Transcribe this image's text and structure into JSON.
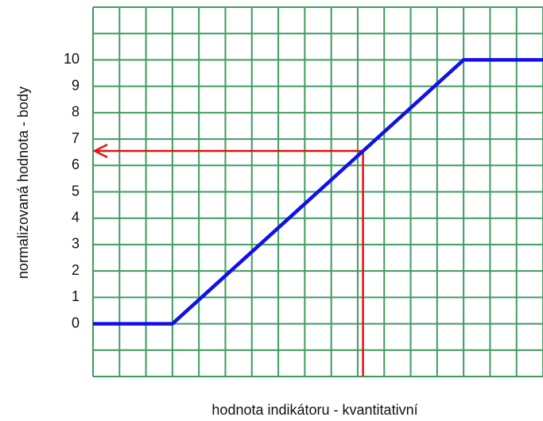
{
  "chart_data": {
    "type": "line",
    "xlabel": "hodnota indikátoru - kvantitativní",
    "ylabel": "normalizovaná hodnota - body",
    "x": [
      0,
      3,
      14,
      17
    ],
    "series": [
      {
        "color": "#1010e8",
        "values": [
          0,
          0,
          10,
          10
        ]
      }
    ],
    "xlim": [
      0,
      17
    ],
    "ylim": [
      -2,
      12
    ],
    "yticks": [
      0,
      1,
      2,
      3,
      4,
      5,
      6,
      7,
      8,
      9,
      10
    ],
    "x_gridlines": [
      0,
      1,
      2,
      3,
      4,
      5,
      6,
      7,
      8,
      9,
      10,
      11,
      12,
      13,
      14,
      15,
      16,
      17
    ],
    "y_gridlines": [
      -2,
      -1,
      0,
      1,
      2,
      3,
      4,
      5,
      6,
      7,
      8,
      9,
      10,
      11,
      12
    ],
    "grid_color": "#3f9c5f",
    "annotation": {
      "x": 10.2,
      "y": 6.55,
      "color": "#e81010"
    }
  }
}
